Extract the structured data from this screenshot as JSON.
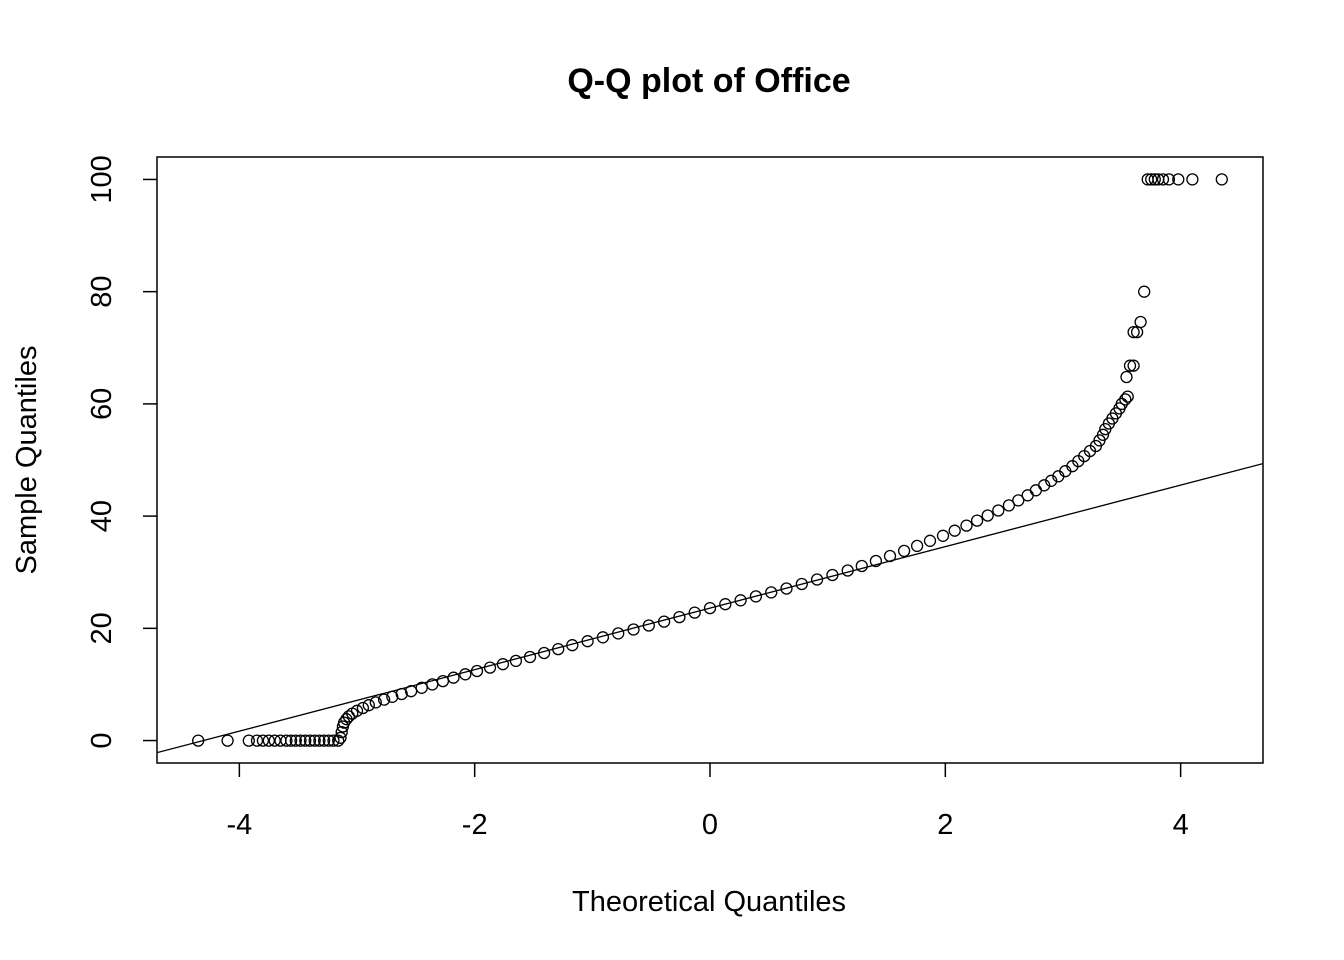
{
  "chart_data": {
    "type": "scatter",
    "title": "Q-Q plot of Office",
    "xlabel": "Theoretical Quantiles",
    "ylabel": "Sample Quantiles",
    "xlim": [
      -4.7,
      4.7
    ],
    "ylim": [
      -4,
      104
    ],
    "x_ticks": [
      -4,
      -2,
      0,
      2,
      4
    ],
    "x_tick_labels": [
      "-4",
      "-2",
      "0",
      "2",
      "4"
    ],
    "y_ticks": [
      0,
      20,
      40,
      60,
      80,
      100
    ],
    "y_tick_labels": [
      "0",
      "20",
      "40",
      "60",
      "80",
      "100"
    ],
    "grid": false,
    "marker": "open-circle",
    "marker_color": "#000000",
    "reference_line": {
      "intercept": 23.6,
      "slope": 5.48
    },
    "points": [
      [
        -4.35,
        0
      ],
      [
        -4.1,
        0
      ],
      [
        -3.92,
        0
      ],
      [
        -3.85,
        0
      ],
      [
        -3.8,
        0
      ],
      [
        -3.75,
        0
      ],
      [
        -3.7,
        0
      ],
      [
        -3.65,
        0
      ],
      [
        -3.6,
        0
      ],
      [
        -3.56,
        0
      ],
      [
        -3.52,
        0
      ],
      [
        -3.48,
        0
      ],
      [
        -3.44,
        0
      ],
      [
        -3.4,
        0
      ],
      [
        -3.36,
        0
      ],
      [
        -3.32,
        0
      ],
      [
        -3.28,
        0
      ],
      [
        -3.24,
        0
      ],
      [
        -3.2,
        0
      ],
      [
        -3.16,
        0
      ],
      [
        -3.14,
        0.5
      ],
      [
        -3.13,
        1.5
      ],
      [
        -3.12,
        2.5
      ],
      [
        -3.11,
        3.2
      ],
      [
        -3.09,
        3.8
      ],
      [
        -3.07,
        4.3
      ],
      [
        -3.04,
        4.8
      ],
      [
        -3.0,
        5.3
      ],
      [
        -2.95,
        5.8
      ],
      [
        -2.9,
        6.3
      ],
      [
        -2.84,
        6.8
      ],
      [
        -2.77,
        7.3
      ],
      [
        -2.7,
        7.8
      ],
      [
        -2.62,
        8.3
      ],
      [
        -2.54,
        8.8
      ],
      [
        -2.45,
        9.4
      ],
      [
        -2.36,
        10.0
      ],
      [
        -2.27,
        10.6
      ],
      [
        -2.18,
        11.2
      ],
      [
        -2.08,
        11.8
      ],
      [
        -1.98,
        12.4
      ],
      [
        -1.87,
        13.0
      ],
      [
        -1.76,
        13.6
      ],
      [
        -1.65,
        14.2
      ],
      [
        -1.53,
        14.9
      ],
      [
        -1.41,
        15.6
      ],
      [
        -1.29,
        16.3
      ],
      [
        -1.17,
        17.0
      ],
      [
        -1.04,
        17.7
      ],
      [
        -0.91,
        18.4
      ],
      [
        -0.78,
        19.1
      ],
      [
        -0.65,
        19.8
      ],
      [
        -0.52,
        20.5
      ],
      [
        -0.39,
        21.2
      ],
      [
        -0.26,
        22.0
      ],
      [
        -0.13,
        22.8
      ],
      [
        0.0,
        23.6
      ],
      [
        0.13,
        24.3
      ],
      [
        0.26,
        25.0
      ],
      [
        0.39,
        25.7
      ],
      [
        0.52,
        26.4
      ],
      [
        0.65,
        27.1
      ],
      [
        0.78,
        27.9
      ],
      [
        0.91,
        28.7
      ],
      [
        1.04,
        29.5
      ],
      [
        1.17,
        30.3
      ],
      [
        1.29,
        31.1
      ],
      [
        1.41,
        32.0
      ],
      [
        1.53,
        32.9
      ],
      [
        1.65,
        33.8
      ],
      [
        1.76,
        34.7
      ],
      [
        1.87,
        35.6
      ],
      [
        1.98,
        36.5
      ],
      [
        2.08,
        37.4
      ],
      [
        2.18,
        38.3
      ],
      [
        2.27,
        39.2
      ],
      [
        2.36,
        40.1
      ],
      [
        2.45,
        41.0
      ],
      [
        2.54,
        41.9
      ],
      [
        2.62,
        42.8
      ],
      [
        2.7,
        43.7
      ],
      [
        2.77,
        44.6
      ],
      [
        2.84,
        45.5
      ],
      [
        2.9,
        46.3
      ],
      [
        2.96,
        47.1
      ],
      [
        3.02,
        48.0
      ],
      [
        3.08,
        48.9
      ],
      [
        3.13,
        49.8
      ],
      [
        3.18,
        50.7
      ],
      [
        3.23,
        51.6
      ],
      [
        3.28,
        52.5
      ],
      [
        3.31,
        53.5
      ],
      [
        3.34,
        54.5
      ],
      [
        3.36,
        55.5
      ],
      [
        3.39,
        56.5
      ],
      [
        3.42,
        57.4
      ],
      [
        3.45,
        58.3
      ],
      [
        3.48,
        59.2
      ],
      [
        3.5,
        60.0
      ],
      [
        3.53,
        60.8
      ],
      [
        3.55,
        61.3
      ],
      [
        3.54,
        64.8
      ],
      [
        3.57,
        66.8
      ],
      [
        3.6,
        66.8
      ],
      [
        3.6,
        72.8
      ],
      [
        3.63,
        72.8
      ],
      [
        3.66,
        74.6
      ],
      [
        3.69,
        80.0
      ],
      [
        3.72,
        100
      ],
      [
        3.75,
        100
      ],
      [
        3.78,
        100
      ],
      [
        3.81,
        100
      ],
      [
        3.85,
        100
      ],
      [
        3.9,
        100
      ],
      [
        3.98,
        100
      ],
      [
        4.1,
        100
      ],
      [
        4.35,
        100
      ]
    ]
  }
}
